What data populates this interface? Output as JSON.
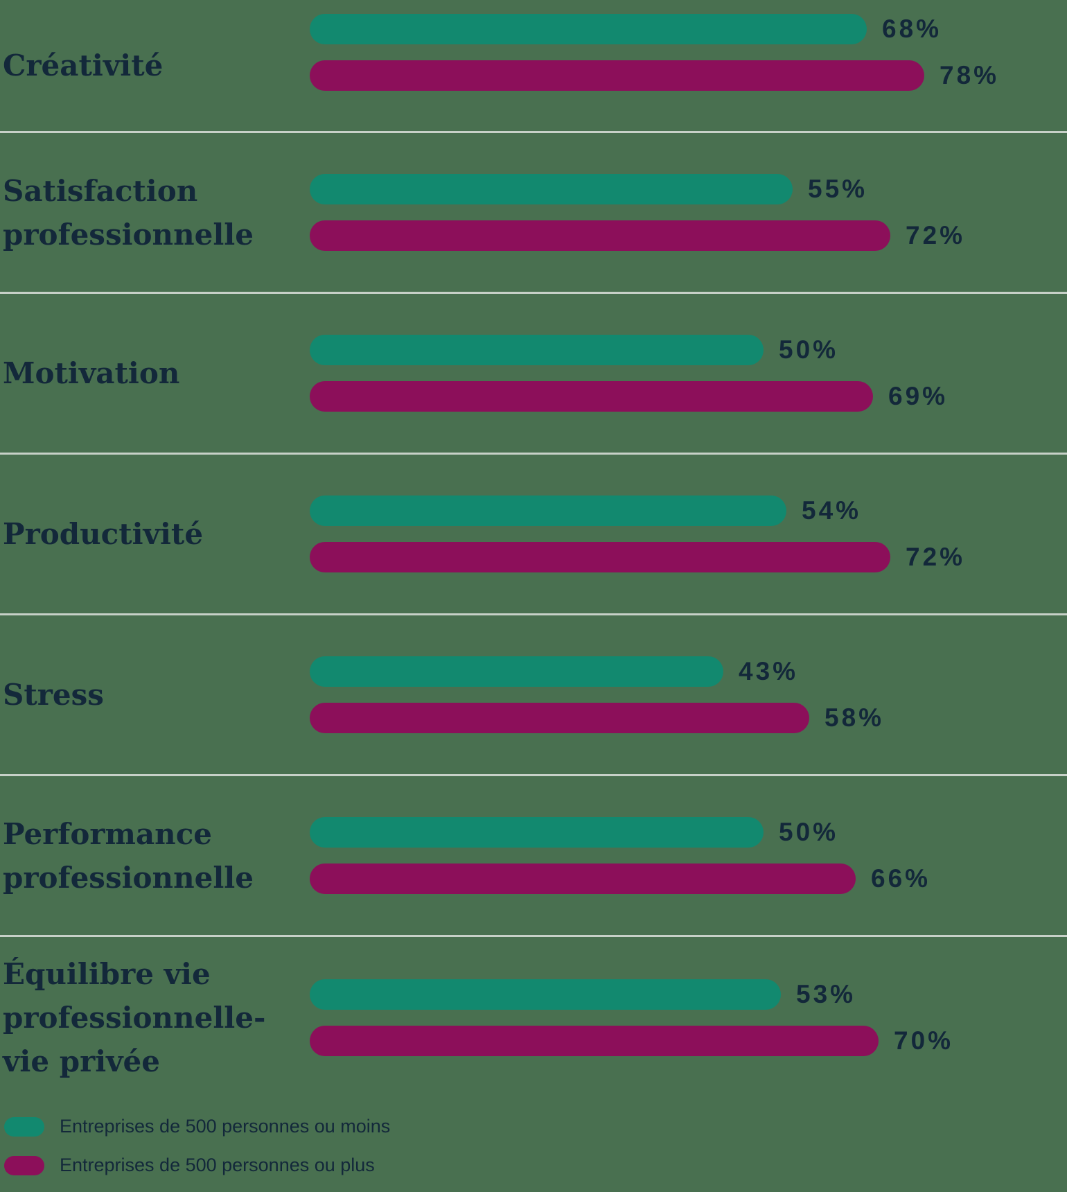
{
  "chart_data": {
    "type": "bar",
    "orientation": "horizontal",
    "title": "",
    "value_suffix": "%",
    "xlim": [
      0,
      100
    ],
    "grid": "light row divider lines between categories",
    "legend_position": "bottom-left",
    "categories": [
      "Créativité",
      "Satisfaction professionnelle",
      "Motivation",
      "Productivité",
      "Stress",
      "Performance professionnelle",
      "Équilibre vie professionnelle-vie privée"
    ],
    "series": [
      {
        "name": "Entreprises de 500 personnes ou moins",
        "color": "#12896F",
        "values": [
          68,
          55,
          50,
          54,
          43,
          50,
          53
        ]
      },
      {
        "name": "Entreprises de 500 personnes ou plus",
        "color": "#8C0F5A",
        "values": [
          78,
          72,
          69,
          72,
          58,
          66,
          70
        ]
      }
    ]
  },
  "legend": {
    "items": [
      {
        "label": "Entreprises de 500 personnes ou moins",
        "color": "#12896F",
        "swatch": "teal-rounded-rect"
      },
      {
        "label": "Entreprises de 500 personnes ou plus",
        "color": "#8C0F5A",
        "swatch": "magenta-rounded-rect"
      }
    ]
  },
  "colors": {
    "background": "#497050",
    "series_small_companies": "#12896F",
    "series_large_companies": "#8C0F5A",
    "text": "#13283A",
    "divider": "#C7D1C8"
  }
}
